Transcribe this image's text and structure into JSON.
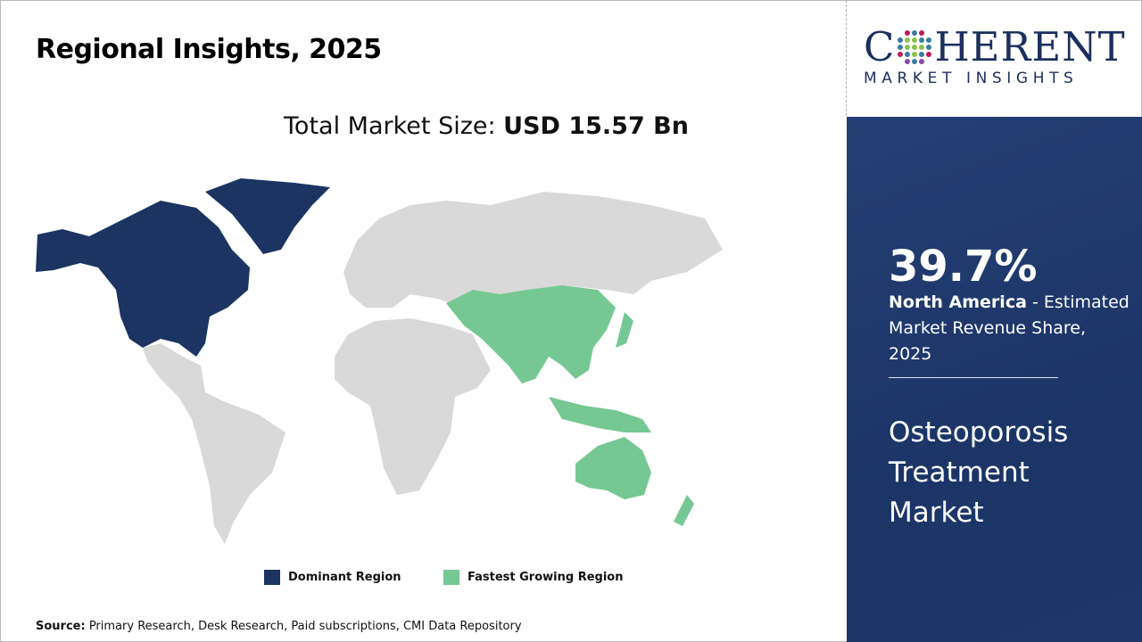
{
  "title": "Regional Insights, 2025",
  "total_market": {
    "label": "Total Market Size: ",
    "value": "USD 15.57 Bn"
  },
  "legend": [
    {
      "label": "Dominant Region",
      "color": "#1b3461"
    },
    {
      "label": "Fastest Growing Region",
      "color": "#76c893"
    }
  ],
  "map": {
    "other_color": "#d9d9d9",
    "dominant_region": "North America",
    "fastest_growing_region": "Asia Pacific"
  },
  "source": {
    "label": "Source:",
    "text": " Primary Research, Desk Research, Paid subscriptions, CMI Data Repository"
  },
  "logo": {
    "top": "COHERENT",
    "bottom": "MARKET INSIGHTS"
  },
  "panel": {
    "share": "39.7%",
    "region": "North America",
    "desc": " - Estimated Market Revenue Share, 2025",
    "market": "Osteoporosis Treatment Market"
  }
}
